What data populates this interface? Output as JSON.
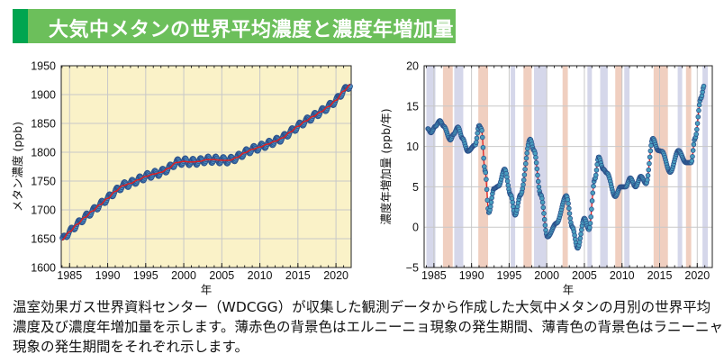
{
  "title": "大気中メタンの世界平均濃度と濃度年増加量",
  "colors": {
    "title_bar": "#6cbf5b",
    "title_accent": "#00a550",
    "plot_bg_left": "#faf2c8",
    "el_nino_band": "#f0cfc0",
    "la_nina_band": "#d5d7ea",
    "marker": "#3b7fb0",
    "trend_line": "#e02020"
  },
  "caption": "温室効果ガス世界資料センター（WDCGG）が収集した観測データから作成した大気中メタンの月別の世界平均濃度及び濃度年増加量を示します。薄赤色の背景色はエルニーニョ現象の発生期間、薄青色の背景色はラニーニャ現象の発生期間をそれぞれ示します。",
  "chart_data": [
    {
      "type": "line",
      "xlabel": "年",
      "ylabel": "メタン濃度 (ppb)",
      "xlim": [
        1983.9,
        2022
      ],
      "ylim": [
        1600,
        1950
      ],
      "xticks": [
        "1985",
        "1990",
        "1995",
        "2000",
        "2005",
        "2010",
        "2015",
        "2020"
      ],
      "yticks": [
        "1600",
        "1650",
        "1700",
        "1750",
        "1800",
        "1850",
        "1900",
        "1950"
      ],
      "grid": true,
      "seasonal_amplitude_ppb": 6,
      "trend": {
        "x": [
          1984,
          1985,
          1986,
          1987,
          1988,
          1989,
          1990,
          1991,
          1992,
          1993,
          1994,
          1995,
          1996,
          1997,
          1998,
          1999,
          2000,
          2001,
          2002,
          2003,
          2004,
          2005,
          2006,
          2007,
          2008,
          2009,
          2010,
          2011,
          2012,
          2013,
          2014,
          2015,
          2016,
          2017,
          2018,
          2019,
          2020,
          2021,
          2021.9
        ],
        "y": [
          1648,
          1662,
          1675,
          1687,
          1698,
          1709,
          1720,
          1732,
          1742,
          1746,
          1752,
          1758,
          1762,
          1765,
          1772,
          1782,
          1784,
          1783,
          1784,
          1787,
          1787,
          1786,
          1786,
          1791,
          1799,
          1805,
          1809,
          1814,
          1819,
          1825,
          1835,
          1845,
          1854,
          1862,
          1870,
          1879,
          1890,
          1906,
          1917
        ]
      }
    },
    {
      "type": "line",
      "xlabel": "年",
      "ylabel": "濃度年増加量 (ppb/年)",
      "xlim": [
        1983.7,
        2022
      ],
      "ylim": [
        -5,
        20
      ],
      "xticks": [
        "1985",
        "1990",
        "1995",
        "2000",
        "2005",
        "2010",
        "2015",
        "2020"
      ],
      "yticks": [
        "−5",
        "0",
        "5",
        "10",
        "15",
        "20"
      ],
      "grid": true,
      "series": {
        "x": [
          1984.2,
          1984.6,
          1985.2,
          1985.8,
          1986.3,
          1987.2,
          1987.6,
          1988.2,
          1988.8,
          1989.5,
          1990.5,
          1991,
          1991.3,
          1991.8,
          1992.3,
          1993,
          1993.6,
          1994.4,
          1995.2,
          1995.8,
          1996.5,
          1997.8,
          1998.3,
          1999.2,
          2000.1,
          2001.3,
          2002.6,
          2003.4,
          2004.1,
          2005,
          2005.6,
          2006.4,
          2006.9,
          2007.5,
          2008,
          2009.1,
          2009.8,
          2010.5,
          2011.1,
          2011.8,
          2012.5,
          2013.2,
          2014.1,
          2014.8,
          2015.3,
          2016.4,
          2017.5,
          2018.5,
          2019.2,
          2019.7,
          2020.5,
          2020.9
        ],
        "y": [
          12.2,
          11.7,
          12.5,
          13.2,
          12.5,
          10.8,
          11.5,
          12.4,
          11,
          9.4,
          10.2,
          12.6,
          12.2,
          7,
          1.8,
          4.8,
          5.1,
          7.2,
          4,
          1.5,
          4,
          10.9,
          9.5,
          4,
          -1.2,
          0.5,
          3.9,
          0,
          -2.6,
          1.1,
          -0.3,
          6,
          8.7,
          7.2,
          6.7,
          3.8,
          5,
          5,
          6.1,
          5,
          6.3,
          5.4,
          11,
          9.5,
          9.4,
          6.8,
          9.5,
          8,
          8,
          11,
          16,
          17.5
        ]
      },
      "el_nino_periods": [
        [
          1986.2,
          1987.5
        ],
        [
          1990.9,
          1992.2
        ],
        [
          1996.9,
          1998.0
        ],
        [
          2002.1,
          2002.8
        ],
        [
          2009.1,
          2010.0
        ],
        [
          2014.2,
          2016.1
        ],
        [
          2018.5,
          2019.2
        ]
      ],
      "la_nina_periods": [
        [
          1984.0,
          1985.2
        ],
        [
          1987.7,
          1988.9
        ],
        [
          1995.2,
          1995.8
        ],
        [
          1998.3,
          2000.0
        ],
        [
          2005.4,
          2006.0
        ],
        [
          2007.1,
          2008.1
        ],
        [
          2010.3,
          2011.0
        ],
        [
          2017.4,
          2018.0
        ],
        [
          2020.7,
          2021.4
        ]
      ]
    }
  ]
}
